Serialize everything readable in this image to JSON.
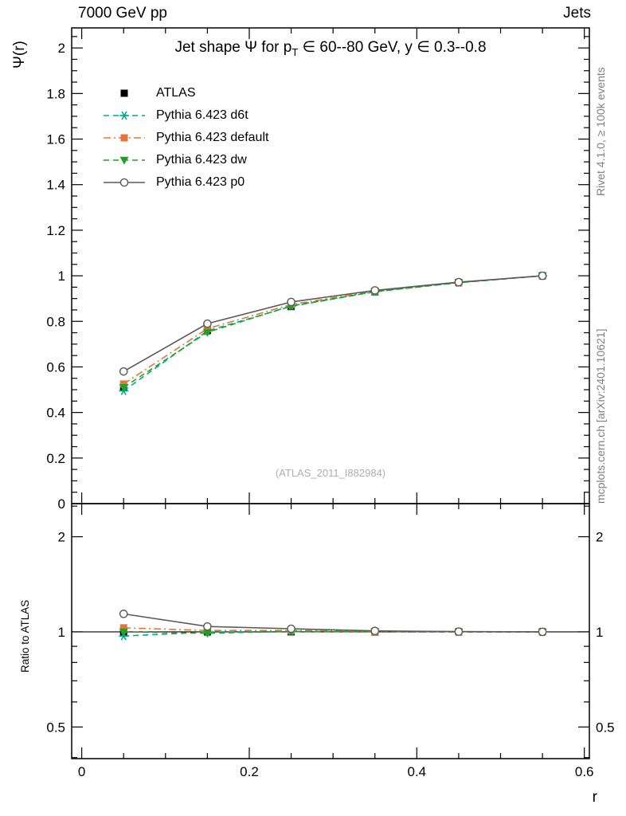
{
  "header": {
    "left": "7000 GeV pp",
    "right": "Jets"
  },
  "side_notes": {
    "top": "Rivet 4.1.0, ≥ 100k events",
    "bottom": "mcplots.cern.ch [arXiv:2401.10621]"
  },
  "title": {
    "pre": "Jet shape Ψ for p",
    "sub": "T",
    "post": " ∈ 60--80 GeV, y ∈ 0.3--0.8"
  },
  "watermark": "(ATLAS_2011_I882984)",
  "axes": {
    "main_ylabel": "Ψ(r)",
    "ratio_ylabel": "Ratio to ATLAS",
    "xlabel": "r"
  },
  "chart_data": {
    "type": "line",
    "title": "Jet shape Ψ for pT ∈ 60--80 GeV, y ∈ 0.3--0.8",
    "legend_position": "top-left",
    "x": [
      0.05,
      0.15,
      0.25,
      0.35,
      0.45,
      0.55
    ],
    "x_axis": {
      "min": -0.012,
      "max": 0.606,
      "ticks": [
        0,
        0.2,
        0.4,
        0.6
      ],
      "tick_labels": [
        "0",
        "0.2",
        "0.4",
        "0.6"
      ],
      "minor_step": 0.05,
      "label": "r"
    },
    "main_axis": {
      "min": 0,
      "max": 2.088,
      "ticks": [
        0,
        0.2,
        0.4,
        0.6,
        0.8,
        1,
        1.2,
        1.4,
        1.6,
        1.8,
        2
      ],
      "tick_labels": [
        "0",
        "0.2",
        "0.4",
        "0.6",
        "0.8",
        "1",
        "1.2",
        "1.4",
        "1.6",
        "1.8",
        "2"
      ],
      "minor_step": 0.05,
      "label": "Ψ(r)"
    },
    "ratio_axis": {
      "scale": "log",
      "min": 0.397,
      "max": 2.546,
      "ticks": [
        0.5,
        1,
        2
      ],
      "tick_labels": [
        "0.5",
        "1",
        "2"
      ],
      "minor_ticks": [
        0.4,
        0.6,
        0.7,
        0.8,
        0.9,
        2.5
      ],
      "label": "Ratio to ATLAS",
      "reference": 1
    },
    "series": [
      {
        "name": "ATLAS",
        "color": "#000000",
        "marker": "filled-square",
        "line": "none",
        "values": [
          0.51,
          0.76,
          0.865,
          0.93,
          0.97,
          1.0
        ],
        "ratio": [
          1,
          1,
          1,
          1,
          1,
          1
        ]
      },
      {
        "name": "Pythia 6.423 d6t",
        "color": "#00aa8c",
        "marker": "asterisk",
        "line": "dashed",
        "values": [
          0.495,
          0.758,
          0.866,
          0.93,
          0.97,
          1.0
        ],
        "ratio": [
          0.97,
          0.998,
          1.001,
          1.0,
          1.0,
          1.0
        ]
      },
      {
        "name": "Pythia 6.423 default",
        "color": "#e8743b",
        "marker": "filled-square",
        "line": "dashdot",
        "values": [
          0.525,
          0.768,
          0.874,
          0.933,
          0.971,
          1.0
        ],
        "ratio": [
          1.03,
          1.01,
          1.01,
          1.003,
          1.001,
          1.0
        ]
      },
      {
        "name": "Pythia 6.423 dw",
        "color": "#21a121",
        "marker": "filled-triangle-down",
        "line": "dashed",
        "values": [
          0.51,
          0.752,
          0.868,
          0.931,
          0.97,
          1.0
        ],
        "ratio": [
          1.0,
          0.99,
          1.004,
          1.001,
          1.0,
          1.0
        ]
      },
      {
        "name": "Pythia 6.423 p0",
        "color": "#5a5a5a",
        "marker": "open-circle",
        "line": "solid",
        "values": [
          0.58,
          0.79,
          0.885,
          0.936,
          0.972,
          1.0
        ],
        "ratio": [
          1.14,
          1.04,
          1.023,
          1.007,
          1.002,
          1.0
        ]
      }
    ]
  }
}
